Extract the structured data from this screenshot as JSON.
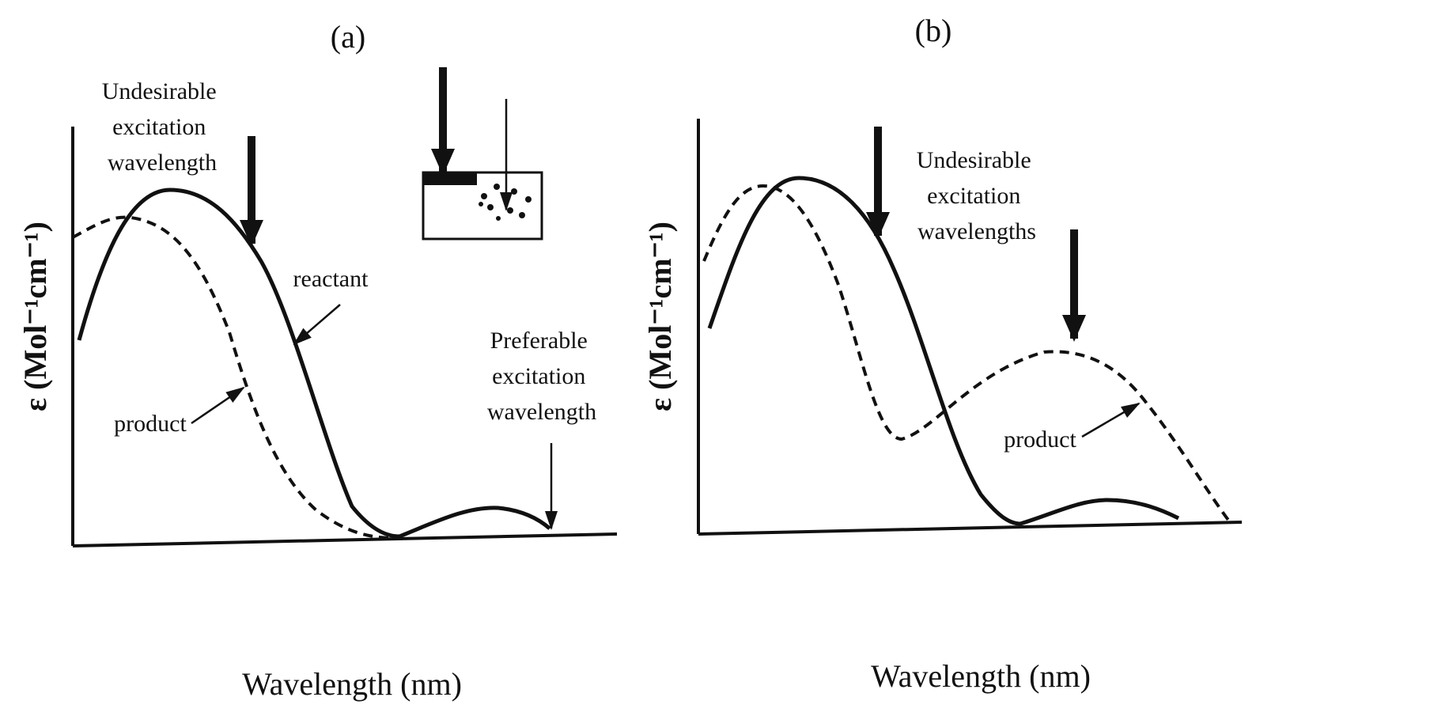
{
  "panel_a": {
    "label": "(a)",
    "undesirable": [
      "Undesirable",
      "excitation",
      "wavelength"
    ],
    "reactant": "reactant",
    "product": "product",
    "preferable": [
      "Preferable",
      "excitation",
      "wavelength"
    ],
    "y_label": "ε (Mol⁻¹cm⁻¹)",
    "x_label": "Wavelength (nm)"
  },
  "panel_b": {
    "label": "(b)",
    "undesirable": [
      "Undesirable",
      "excitation",
      "wavelengths"
    ],
    "product": "product",
    "y_label": "ε (Mol⁻¹cm⁻¹)",
    "x_label": "Wavelength (nm)"
  }
}
